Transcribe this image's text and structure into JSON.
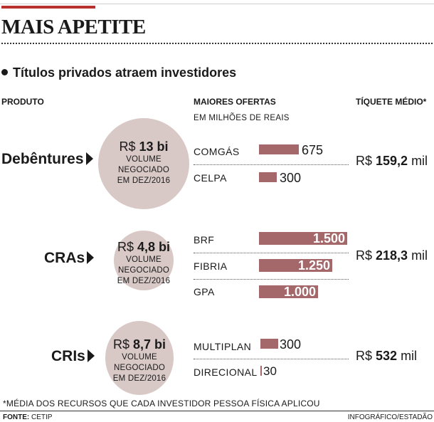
{
  "title": "MAIS APETITE",
  "subtitle": "Títulos privados atraem investidores",
  "columns": {
    "product": "PRODUTO",
    "offers": "MAIORES OFERTAS",
    "offers_unit": "EM MILHÕES DE REAIS",
    "ticket": "TÍQUETE MÉDIO*"
  },
  "rows": [
    {
      "product": "Debêntures",
      "volume_prefix": "R$ ",
      "volume_value": "13 bi",
      "volume_caption": [
        "VOLUME",
        "NEGOCIADO",
        "EM DEZ/2016"
      ],
      "offers": [
        {
          "company": "COMGÁS",
          "value": 675,
          "label": "675"
        },
        {
          "company": "CELPA",
          "value": 300,
          "label": "300"
        }
      ],
      "ticket_prefix": "R$ ",
      "ticket_value": "159,2",
      "ticket_suffix": " mil"
    },
    {
      "product": "CRAs",
      "volume_prefix": "R$ ",
      "volume_value": "4,8 bi",
      "volume_caption": [
        "VOLUME",
        "NEGOCIADO",
        "EM DEZ/2016"
      ],
      "offers": [
        {
          "company": "BRF",
          "value": 1500,
          "label": "1.500"
        },
        {
          "company": "FIBRIA",
          "value": 1250,
          "label": "1.250"
        },
        {
          "company": "GPA",
          "value": 1000,
          "label": "1.000"
        }
      ],
      "ticket_prefix": "R$ ",
      "ticket_value": "218,3",
      "ticket_suffix": " mil"
    },
    {
      "product": "CRIs",
      "volume_prefix": "R$ ",
      "volume_value": "8,7 bi",
      "volume_caption": [
        "VOLUME",
        "NEGOCIADO",
        "EM DEZ/2016"
      ],
      "offers": [
        {
          "company": "MULTIPLAN",
          "value": 300,
          "label": "300"
        },
        {
          "company": "DIRECIONAL",
          "value": 30,
          "label": "30"
        }
      ],
      "ticket_prefix": "R$ ",
      "ticket_value": "532",
      "ticket_suffix": " mil"
    }
  ],
  "footnote": "*MÉDIA DOS RECURSOS QUE CADA INVESTIDOR PESSOA FÍSICA APLICOU",
  "source_label": "FONTE:",
  "source_value": " CETIP",
  "credit": "INFOGRÁFICO/ESTADÃO",
  "colors": {
    "accent": "#b8312f",
    "bar": "#a4676a",
    "circle": "#d8c9c7"
  },
  "chart_data": {
    "type": "bar",
    "orientation": "horizontal",
    "unit": "EM MILHÕES DE REAIS",
    "categories": [
      "COMGÁS",
      "CELPA",
      "BRF",
      "FIBRIA",
      "GPA",
      "MULTIPLAN",
      "DIRECIONAL"
    ],
    "values": [
      675,
      300,
      1500,
      1250,
      1000,
      300,
      30
    ],
    "groups": [
      {
        "name": "Debêntures",
        "categories": [
          "COMGÁS",
          "CELPA"
        ]
      },
      {
        "name": "CRAs",
        "categories": [
          "BRF",
          "FIBRIA",
          "GPA"
        ]
      },
      {
        "name": "CRIs",
        "categories": [
          "MULTIPLAN",
          "DIRECIONAL"
        ]
      }
    ]
  }
}
